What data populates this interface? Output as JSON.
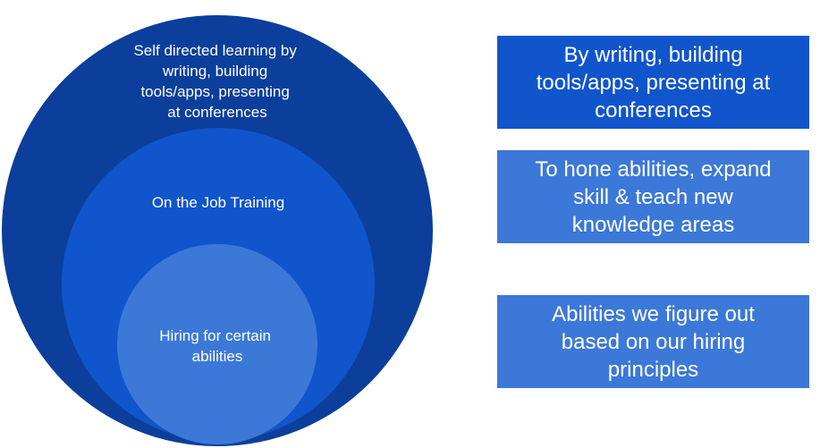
{
  "circles": {
    "outer": {
      "label": "Self directed learning by\nwriting, building\ntools/apps, presenting\nat conferences",
      "color": "#0b3f9b"
    },
    "middle": {
      "label": "On the Job Training",
      "color": "#1155cc"
    },
    "inner": {
      "label": "Hiring for certain\nabilities",
      "color": "#3c78d8"
    }
  },
  "boxes": [
    {
      "text": "By writing, building\ntools/apps, presenting at\nconferences",
      "color": "#1155cc"
    },
    {
      "text": "To hone abilities, expand\nskill & teach new\nknowledge areas",
      "color": "#3c78d8"
    },
    {
      "text": "Abilities we figure out\nbased on our hiring\nprinciples",
      "color": "#3c78d8"
    }
  ]
}
